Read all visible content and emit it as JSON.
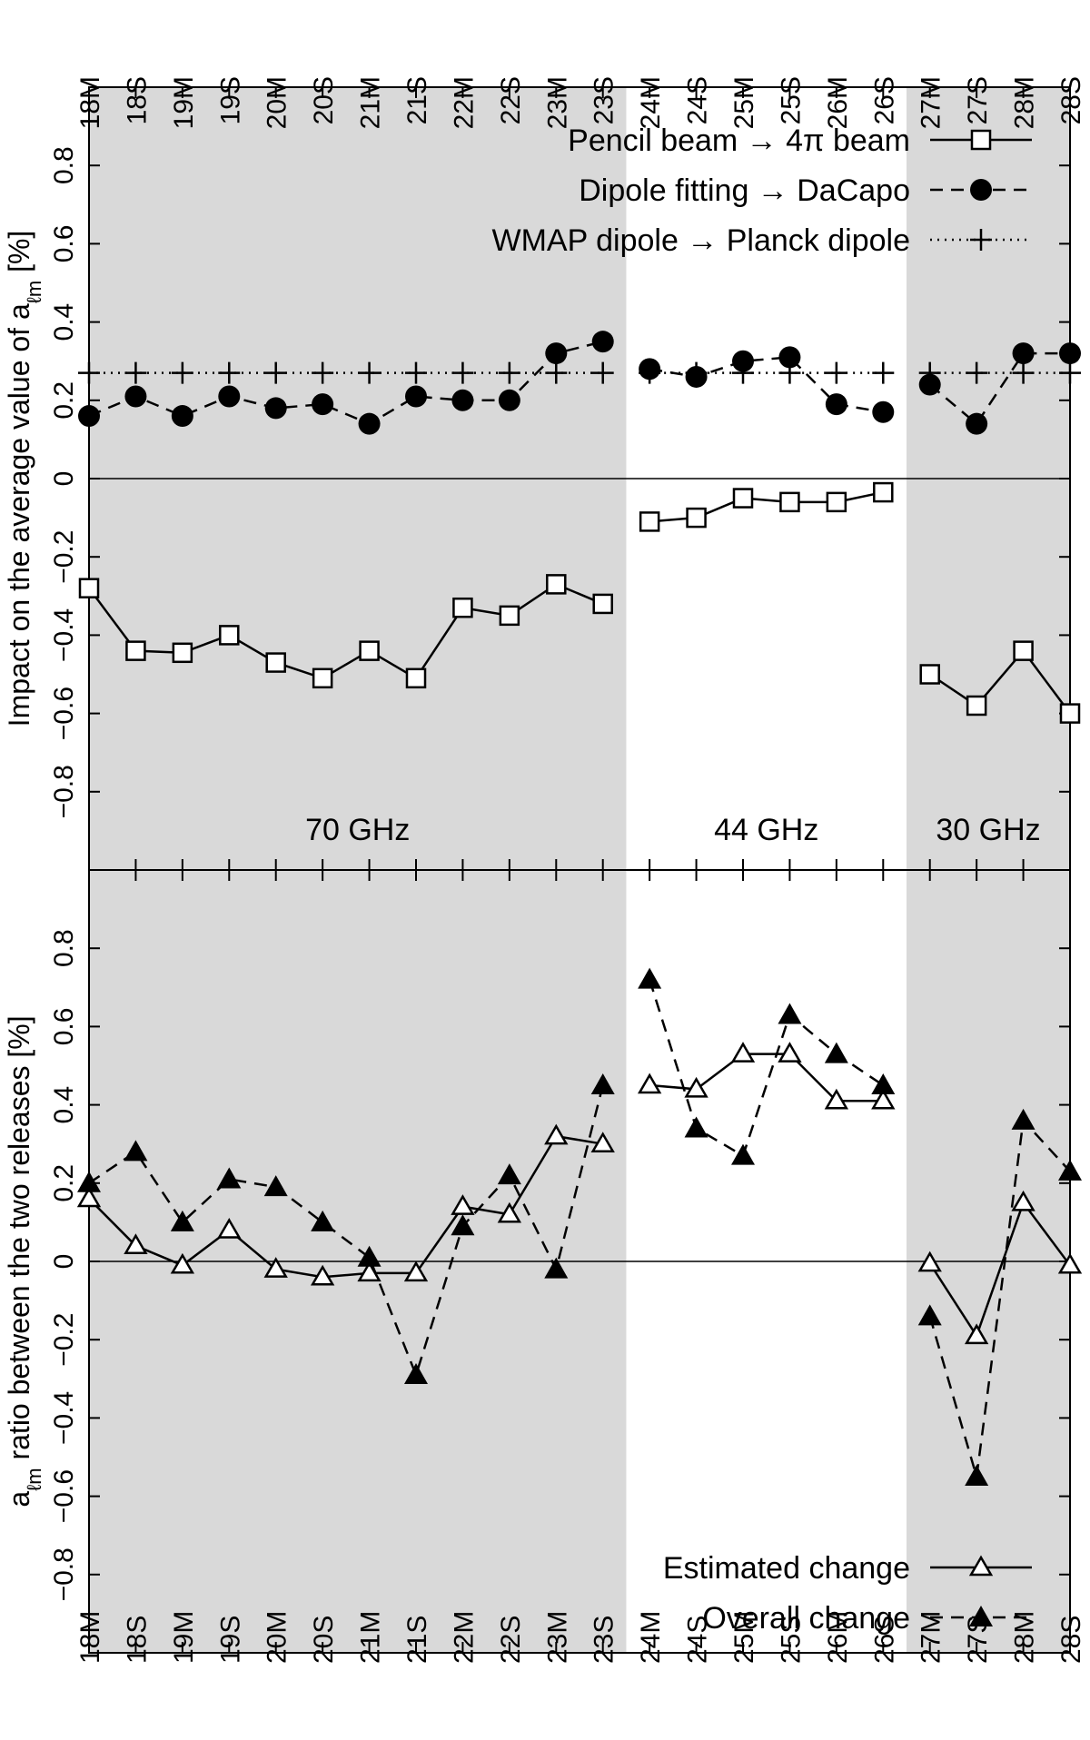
{
  "chart_data": [
    {
      "type": "line",
      "panel": "top",
      "categories": [
        "18M",
        "18S",
        "19M",
        "19S",
        "20M",
        "20S",
        "21M",
        "21S",
        "22M",
        "22S",
        "23M",
        "23S",
        "24M",
        "24S",
        "25M",
        "25S",
        "26M",
        "26S",
        "27M",
        "27S",
        "28M",
        "28S"
      ],
      "ylabel": "Impact on the average value of a",
      "ylabel_subscript": "ℓm",
      "ylabel_suffix": " [%]",
      "ylim": [
        -1.0,
        1.0
      ],
      "yticks": [
        -0.8,
        -0.6,
        -0.4,
        -0.2,
        0,
        0.2,
        0.4,
        0.6,
        0.8
      ],
      "ytick_labels": [
        "−0.8",
        "−0.6",
        "−0.4",
        "−0.2",
        "0",
        "0.2",
        "0.4",
        "0.6",
        "0.8"
      ],
      "series": [
        {
          "name": "Pencil beam → 4π beam",
          "style": "solid",
          "marker": "open-square",
          "values": [
            -0.28,
            -0.44,
            -0.445,
            -0.4,
            -0.47,
            -0.51,
            -0.44,
            -0.51,
            -0.33,
            -0.35,
            -0.27,
            -0.32,
            -0.11,
            -0.1,
            -0.05,
            -0.06,
            -0.06,
            -0.035,
            -0.5,
            -0.58,
            -0.44,
            -0.6
          ]
        },
        {
          "name": "Dipole fitting → DaCapo",
          "style": "dashed",
          "marker": "filled-circle",
          "values": [
            0.16,
            0.21,
            0.16,
            0.21,
            0.18,
            0.19,
            0.14,
            0.21,
            0.2,
            0.2,
            0.32,
            0.35,
            0.28,
            0.26,
            0.3,
            0.31,
            0.19,
            0.17,
            0.24,
            0.14,
            0.32,
            0.32
          ]
        },
        {
          "name": "WMAP dipole → Planck dipole",
          "style": "dotted",
          "marker": "plus",
          "values": [
            0.27,
            0.27,
            0.27,
            0.27,
            0.27,
            0.27,
            0.27,
            0.27,
            0.27,
            0.27,
            0.27,
            0.27,
            0.27,
            0.27,
            0.27,
            0.27,
            0.27,
            0.27,
            0.27,
            0.27,
            0.27,
            0.27
          ]
        }
      ],
      "band_labels": [
        "70 GHz",
        "44 GHz",
        "30 GHz"
      ],
      "legend_position": "top-right"
    },
    {
      "type": "line",
      "panel": "bottom",
      "categories": [
        "18M",
        "18S",
        "19M",
        "19S",
        "20M",
        "20S",
        "21M",
        "21S",
        "22M",
        "22S",
        "23M",
        "23S",
        "24M",
        "24S",
        "25M",
        "25S",
        "26M",
        "26S",
        "27M",
        "27S",
        "28M",
        "28S"
      ],
      "ylabel": "a",
      "ylabel_subscript": "ℓm",
      "ylabel_suffix": " ratio between the two releases [%]",
      "ylim": [
        -1.0,
        1.0
      ],
      "yticks": [
        -0.8,
        -0.6,
        -0.4,
        -0.2,
        0,
        0.2,
        0.4,
        0.6,
        0.8
      ],
      "ytick_labels": [
        "−0.8",
        "−0.6",
        "−0.4",
        "−0.2",
        "0",
        "0.2",
        "0.4",
        "0.6",
        "0.8"
      ],
      "series": [
        {
          "name": "Estimated change",
          "style": "solid",
          "marker": "open-triangle",
          "values": [
            0.16,
            0.04,
            -0.01,
            0.08,
            -0.02,
            -0.04,
            -0.03,
            -0.03,
            0.14,
            0.12,
            0.32,
            0.3,
            0.45,
            0.44,
            0.53,
            0.53,
            0.41,
            0.41,
            -0.005,
            -0.19,
            0.15,
            -0.01
          ]
        },
        {
          "name": "Overall change",
          "style": "dashed",
          "marker": "filled-triangle",
          "values": [
            0.2,
            0.28,
            0.1,
            0.21,
            0.19,
            0.1,
            0.01,
            -0.29,
            0.09,
            0.22,
            -0.02,
            0.45,
            0.72,
            0.34,
            0.27,
            0.63,
            0.53,
            0.45,
            -0.14,
            -0.55,
            0.36,
            0.23
          ]
        }
      ],
      "legend_position": "bottom-right"
    }
  ],
  "shading": {
    "band_color": "#d9d9d9",
    "shaded_ranges": [
      [
        "18M",
        "23S"
      ],
      [
        "27M",
        "28S"
      ]
    ]
  }
}
